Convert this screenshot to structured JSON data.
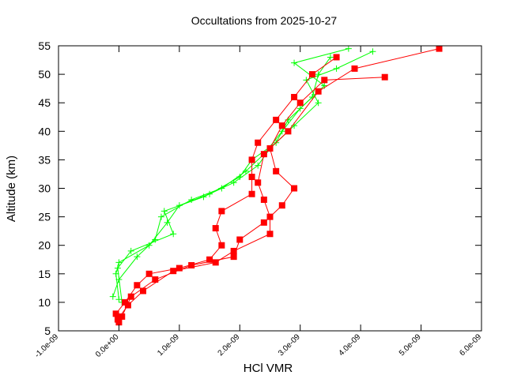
{
  "chart_data": {
    "type": "line",
    "title": "Occultations from 2025-10-27",
    "x_label": "HCl VMR",
    "y_label": "Altitude (km)",
    "xlim": [
      -1e-09,
      6e-09
    ],
    "xticks": [
      {
        "value": -1e-09,
        "label": "-1.0e-09"
      },
      {
        "value": 0,
        "label": "0.0e+00"
      },
      {
        "value": 1e-09,
        "label": "1.0e-09"
      },
      {
        "value": 2e-09,
        "label": "2.0e-09"
      },
      {
        "value": 3e-09,
        "label": "3.0e-09"
      },
      {
        "value": 4e-09,
        "label": "4.0e-09"
      },
      {
        "value": 5e-09,
        "label": "5.0e-09"
      },
      {
        "value": 6e-09,
        "label": "6.0e-09"
      }
    ],
    "ylim": [
      5,
      55
    ],
    "yticks": [
      5,
      10,
      15,
      20,
      25,
      30,
      35,
      40,
      45,
      50,
      55
    ],
    "series": [
      {
        "color": "#00ff00",
        "marker": "plus",
        "x": [
          0,
          -5e-11,
          0,
          5e-10,
          8e-10,
          1e-09,
          1.5e-09,
          2e-09,
          2.2e-09,
          2.6e-09,
          2.8e-09,
          3.2e-09,
          3.3e-09,
          3.5e-09
        ],
        "values": [
          10.5,
          15,
          17,
          20,
          24,
          27,
          29,
          32,
          35,
          38,
          42,
          46,
          50,
          53
        ]
      },
      {
        "color": "#00ff00",
        "marker": "plus",
        "x": [
          -1e-10,
          0,
          3e-10,
          6e-10,
          7e-10,
          1.2e-09,
          1.7e-09,
          2.1e-09,
          2.4e-09,
          2.7e-09,
          3e-09,
          3.4e-09,
          2.9e-09,
          3.8e-09
        ],
        "values": [
          11,
          14,
          18,
          21,
          25,
          28,
          30,
          33,
          36,
          40,
          44,
          48,
          52,
          54.5
        ]
      },
      {
        "color": "#00ff00",
        "marker": "plus",
        "x": [
          5e-11,
          -2e-11,
          2e-10,
          9e-10,
          7.5e-10,
          1.4e-09,
          1.9e-09,
          2.3e-09,
          2.5e-09,
          2.9e-09,
          3.3e-09,
          3.1e-09,
          3.6e-09,
          4.2e-09
        ],
        "values": [
          10,
          16,
          19,
          22,
          26,
          28.5,
          31,
          34,
          37,
          41,
          45,
          49,
          51,
          54
        ]
      },
      {
        "color": "#ff0000",
        "marker": "square",
        "x": [
          0,
          -5e-11,
          1e-10,
          3e-10,
          5e-10,
          1e-09,
          1.5e-09,
          1.7e-09,
          1.6e-09,
          1.7e-09,
          2.2e-09,
          2.2e-09,
          2.2e-09,
          2.3e-09,
          2.6e-09,
          2.9e-09,
          3.2e-09,
          3.6e-09
        ],
        "values": [
          6.5,
          8,
          10,
          13,
          15,
          16,
          17.5,
          20,
          23,
          26,
          29,
          32,
          35,
          38,
          42,
          46,
          50,
          53
        ]
      },
      {
        "color": "#ff0000",
        "marker": "square",
        "x": [
          5e-11,
          2e-10,
          6e-10,
          1.2e-09,
          1.9e-09,
          2e-09,
          2.4e-09,
          2.7e-09,
          2.9e-09,
          2.6e-09,
          2.5e-09,
          2.7e-09,
          3e-09,
          3.4e-09,
          4.4e-09
        ],
        "values": [
          7.5,
          11,
          14,
          16.5,
          18,
          21,
          24,
          27,
          30,
          33,
          37,
          41,
          45,
          49,
          49.5
        ]
      },
      {
        "color": "#ff0000",
        "marker": "square",
        "x": [
          -2e-11,
          1.5e-10,
          4e-10,
          9e-10,
          1.6e-09,
          1.9e-09,
          2.5e-09,
          2.5e-09,
          2.4e-09,
          2.3e-09,
          2.4e-09,
          2.8e-09,
          3.3e-09,
          3.9e-09,
          5.3e-09
        ],
        "values": [
          7,
          9.5,
          12,
          15.5,
          17,
          19,
          22,
          25,
          28,
          31,
          36,
          40,
          47,
          51,
          54.5
        ]
      }
    ]
  }
}
